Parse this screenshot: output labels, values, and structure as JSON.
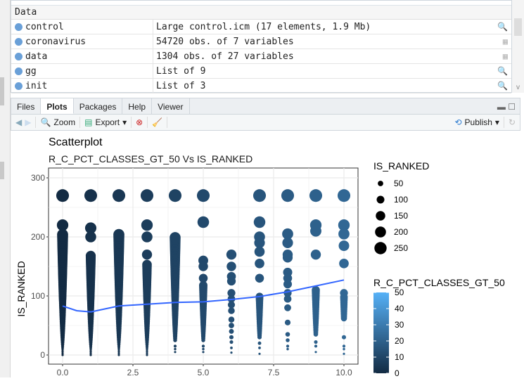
{
  "environment": {
    "header": "Data",
    "rows": [
      {
        "name": "control",
        "value": "Large control.icm (17 elements, 1.9 Mb)",
        "icon": "search-icon"
      },
      {
        "name": "coronavirus",
        "value": "54720 obs. of 7 variables",
        "icon": "table-icon"
      },
      {
        "name": "data",
        "value": "1304 obs. of 27 variables",
        "icon": "table-icon"
      },
      {
        "name": "gg",
        "value": "List of 9",
        "icon": "search-icon"
      },
      {
        "name": "init",
        "value": "List of 3",
        "icon": "search-icon"
      }
    ]
  },
  "tabs": [
    "Files",
    "Plots",
    "Packages",
    "Help",
    "Viewer"
  ],
  "active_tab": "Plots",
  "toolbar": {
    "zoom": "Zoom",
    "export": "Export",
    "publish": "Publish"
  },
  "chart_data": {
    "type": "scatter",
    "title": "Scatterplot",
    "subtitle": "R_C_PCT_CLASSES_GT_50 Vs IS_RANKED",
    "xlabel": "",
    "ylabel": "IS_RANKED",
    "xlim": [
      -0.5,
      10.5
    ],
    "ylim": [
      -15,
      315
    ],
    "xticks": [
      "0.0",
      "2.5",
      "5.0",
      "7.5",
      "10.0"
    ],
    "yticks": [
      "0",
      "100",
      "200",
      "300"
    ],
    "grid": true,
    "size_legend": {
      "title": "IS_RANKED",
      "values": [
        50,
        100,
        150,
        200,
        250
      ]
    },
    "color_legend": {
      "title": "R_C_PCT_CLASSES_GT_50",
      "ticks": [
        0,
        10,
        20,
        30,
        40,
        50
      ],
      "low": "#132B43",
      "high": "#56B1F7"
    },
    "columns": [
      {
        "x": 0,
        "points": [
          270,
          220
        ],
        "ranges": [
          [
            0,
            205
          ]
        ]
      },
      {
        "x": 1,
        "points": [
          270,
          215,
          200
        ],
        "ranges": [
          [
            0,
            170
          ]
        ]
      },
      {
        "x": 2,
        "points": [
          270
        ],
        "ranges": [
          [
            0,
            205
          ]
        ]
      },
      {
        "x": 3,
        "points": [
          270,
          220,
          200,
          170
        ],
        "ranges": [
          [
            0,
            155
          ]
        ]
      },
      {
        "x": 4,
        "points": [
          270,
          15,
          10,
          5
        ],
        "ranges": [
          [
            25,
            200
          ]
        ]
      },
      {
        "x": 5,
        "points": [
          270,
          225,
          160,
          150,
          130,
          15,
          10,
          5
        ],
        "ranges": [
          [
            25,
            120
          ]
        ]
      },
      {
        "x": 6,
        "points": [
          170,
          150,
          133,
          125,
          105,
          95,
          85,
          75,
          60,
          50,
          40,
          30,
          22,
          12,
          4
        ]
      },
      {
        "x": 7,
        "points": [
          270,
          225,
          200,
          190,
          175,
          155,
          130,
          20,
          12,
          2
        ],
        "ranges": [
          [
            30,
            100
          ]
        ]
      },
      {
        "x": 8,
        "points": [
          270,
          205,
          190,
          170,
          165,
          140,
          130,
          120,
          105,
          95,
          80,
          55,
          35,
          25,
          15,
          10
        ]
      },
      {
        "x": 9,
        "points": [
          270,
          220,
          210,
          170,
          22,
          15,
          5
        ],
        "ranges": [
          [
            35,
            110
          ]
        ]
      },
      {
        "x": 10,
        "points": [
          270,
          220,
          205,
          185,
          155,
          105,
          30,
          15,
          10,
          2
        ],
        "ranges": [
          [
            62,
            100
          ]
        ]
      }
    ],
    "smooth": {
      "color": "#3366FF",
      "x": [
        0,
        0.5,
        1,
        1.5,
        2,
        3,
        4,
        5,
        6,
        7,
        8,
        9,
        10
      ],
      "y": [
        83,
        75,
        73,
        78,
        83,
        86,
        89,
        90,
        94,
        99,
        107,
        117,
        127
      ]
    }
  }
}
